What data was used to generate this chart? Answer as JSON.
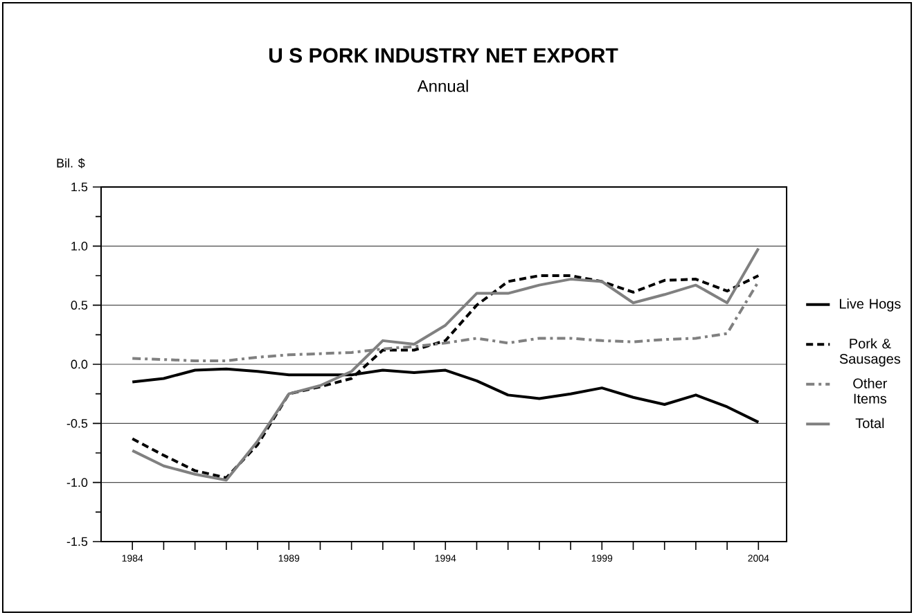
{
  "chart_data": {
    "type": "line",
    "title": "U S PORK INDUSTRY NET EXPORT",
    "subtitle": "Annual",
    "ylabel": "Bil. $",
    "x": [
      1984,
      1985,
      1986,
      1987,
      1988,
      1989,
      1990,
      1991,
      1992,
      1993,
      1994,
      1995,
      1996,
      1997,
      1998,
      1999,
      2000,
      2001,
      2002,
      2003,
      2004
    ],
    "series": [
      {
        "name": "Live Hogs",
        "color": "#000000",
        "line_style": "solid",
        "values": [
          -0.15,
          -0.12,
          -0.05,
          -0.04,
          -0.06,
          -0.09,
          -0.09,
          -0.09,
          -0.05,
          -0.07,
          -0.05,
          -0.14,
          -0.26,
          -0.29,
          -0.25,
          -0.2,
          -0.28,
          -0.34,
          -0.26,
          -0.36,
          -0.49
        ]
      },
      {
        "name": "Pork & Sausages",
        "color": "#000000",
        "line_style": "dashed",
        "values": [
          -0.63,
          -0.77,
          -0.9,
          -0.96,
          -0.68,
          -0.25,
          -0.19,
          -0.12,
          0.12,
          0.12,
          0.2,
          0.5,
          0.7,
          0.75,
          0.75,
          0.7,
          0.61,
          0.71,
          0.72,
          0.62,
          0.75
        ]
      },
      {
        "name": "Other Items",
        "color": "#808080",
        "line_style": "dashdot",
        "values": [
          0.05,
          0.04,
          0.03,
          0.03,
          0.06,
          0.08,
          0.09,
          0.1,
          0.13,
          0.15,
          0.18,
          0.22,
          0.18,
          0.22,
          0.22,
          0.2,
          0.19,
          0.21,
          0.22,
          0.26,
          0.7
        ]
      },
      {
        "name": "Total",
        "color": "#808080",
        "line_style": "solid",
        "values": [
          -0.73,
          -0.86,
          -0.93,
          -0.98,
          -0.65,
          -0.25,
          -0.18,
          -0.06,
          0.2,
          0.17,
          0.33,
          0.6,
          0.6,
          0.67,
          0.72,
          0.7,
          0.52,
          0.59,
          0.67,
          0.52,
          0.98
        ]
      }
    ],
    "xlim": [
      1983,
      2004.9
    ],
    "xticks": [
      1984,
      {
        "value": 1985,
        "label": null
      },
      {
        "value": 1986,
        "label": null
      },
      {
        "value": 1987,
        "label": null
      },
      {
        "value": 1988,
        "label": null
      },
      1989,
      {
        "value": 1990,
        "label": null
      },
      {
        "value": 1991,
        "label": null
      },
      {
        "value": 1992,
        "label": null
      },
      {
        "value": 1993,
        "label": null
      },
      1994,
      {
        "value": 1995,
        "label": null
      },
      {
        "value": 1996,
        "label": null
      },
      {
        "value": 1997,
        "label": null
      },
      {
        "value": 1998,
        "label": null
      },
      1999,
      {
        "value": 2000,
        "label": null
      },
      {
        "value": 2001,
        "label": null
      },
      {
        "value": 2002,
        "label": null
      },
      {
        "value": 2003,
        "label": null
      },
      2004
    ],
    "ylim": [
      -1.5,
      1.5
    ],
    "yticks": [
      {
        "value": -1.5,
        "label": "-1.5"
      },
      {
        "value": -1.0,
        "label": "-1.0"
      },
      {
        "value": -0.5,
        "label": "-0.5"
      },
      {
        "value": 0,
        "label": "0.0"
      },
      {
        "value": 0.5,
        "label": "0.5"
      },
      {
        "value": 1.0,
        "label": "1.0"
      },
      {
        "value": 1.5,
        "label": "1.5"
      }
    ],
    "grid": "y",
    "legend": "right",
    "marker": "none"
  }
}
